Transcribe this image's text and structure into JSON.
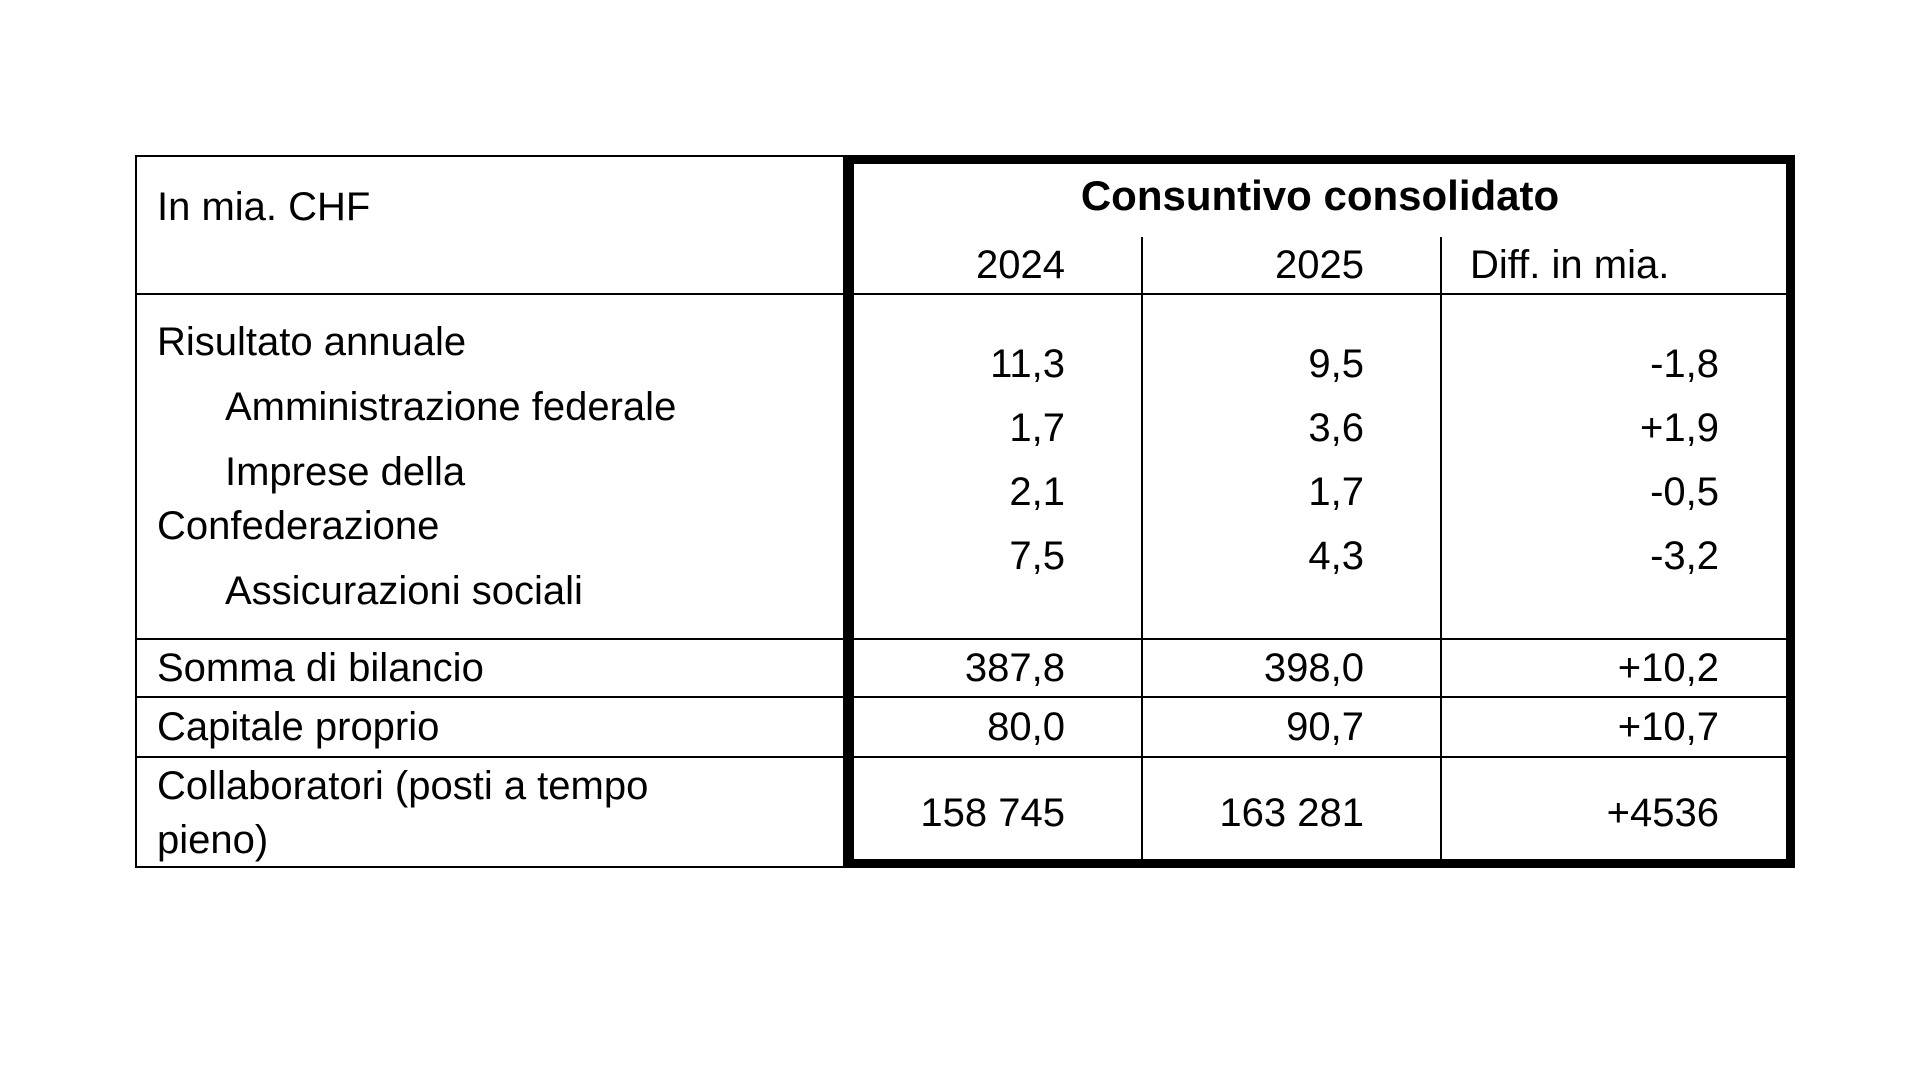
{
  "page": {
    "background": "#ffffff"
  },
  "table": {
    "unit_label": "In mia. CHF",
    "group_header": "Consuntivo consolidato",
    "col_headers": {
      "y2024": "2024",
      "y2025": "2025",
      "diff": "Diff. in mia."
    },
    "annual_result_block": {
      "rows": [
        {
          "label": "Risultato annuale",
          "indent": false,
          "y2024": "11,3",
          "y2025": "9,5",
          "diff": "-1,8"
        },
        {
          "label": "Amministrazione federale",
          "indent": true,
          "y2024": "1,7",
          "y2025": "3,6",
          "diff": "+1,9"
        },
        {
          "label": "Imprese della\nConfederazione",
          "indent": true,
          "y2024": "2,1",
          "y2025": "1,7",
          "diff": "-0,5"
        },
        {
          "label": "Assicurazioni sociali",
          "indent": true,
          "y2024": "7,5",
          "y2025": "4,3",
          "diff": "-3,2"
        }
      ]
    },
    "summary_rows": [
      {
        "label": "Somma di bilancio",
        "y2024": "387,8",
        "y2025": "398,0",
        "diff": "+10,2"
      },
      {
        "label": "Capitale proprio",
        "y2024": "80,0",
        "y2025": "90,7",
        "diff": "+10,7"
      },
      {
        "label": "Collaboratori (posti a tempo\npieno)",
        "y2024": "158 745",
        "y2025": "163 281",
        "diff": "+4536"
      }
    ],
    "colors": {
      "border": "#000000",
      "text": "#000000",
      "background": "#ffffff"
    }
  }
}
